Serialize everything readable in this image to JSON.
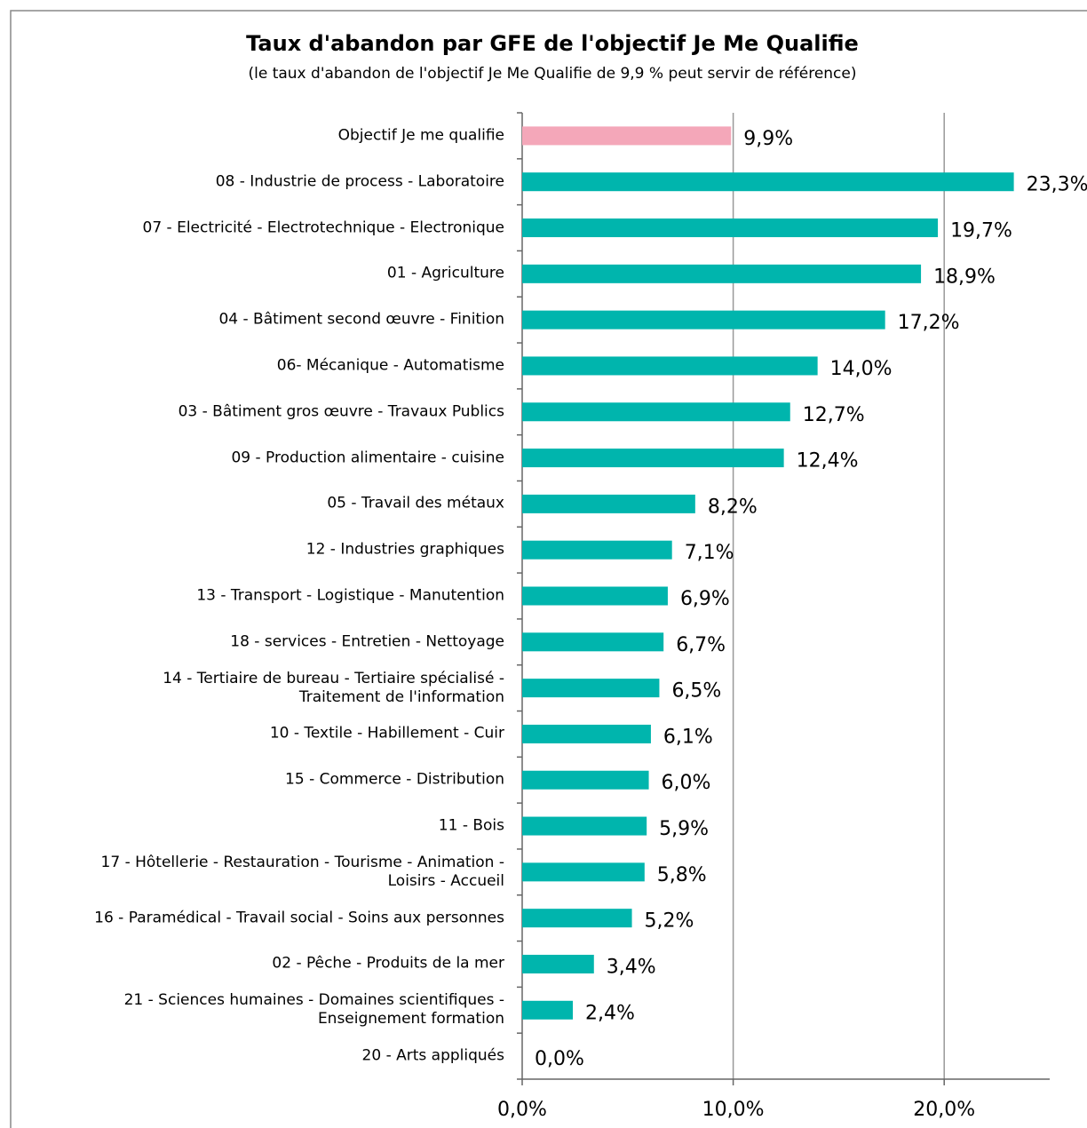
{
  "chart_data": {
    "type": "bar",
    "orientation": "horizontal",
    "title": "Taux d'abandon par GFE de l'objectif Je Me Qualifie",
    "subtitle": "(le taux d'abandon de l'objectif Je Me  Qualifie de 9,9 % peut servir de référence)",
    "categories": [
      "Objectif Je me qualifie",
      "08 - Industrie de process - Laboratoire",
      "07 - Electricité - Electrotechnique - Electronique",
      "01 - Agriculture",
      "04 - Bâtiment second œuvre - Finition",
      "06- Mécanique - Automatisme",
      "03 - Bâtiment gros œuvre - Travaux Publics",
      "09 - Production alimentaire - cuisine",
      "05 - Travail des métaux",
      "12 - Industries graphiques",
      "13 - Transport - Logistique - Manutention",
      "18 - services - Entretien - Nettoyage",
      "14 - Tertiaire de bureau - Tertiaire spécialisé -\nTraitement de l'information",
      "10 - Textile - Habillement - Cuir",
      "15 - Commerce - Distribution",
      "11 - Bois",
      "17 - Hôtellerie - Restauration - Tourisme - Animation -\nLoisirs - Accueil",
      "16 - Paramédical - Travail social - Soins aux personnes",
      "02 - Pêche - Produits de la mer",
      "21 - Sciences humaines - Domaines scientifiques -\nEnseignement formation",
      "20 - Arts appliqués"
    ],
    "values": [
      9.9,
      23.3,
      19.7,
      18.9,
      17.2,
      14.0,
      12.7,
      12.4,
      8.2,
      7.1,
      6.9,
      6.7,
      6.5,
      6.1,
      6.0,
      5.9,
      5.8,
      5.2,
      3.4,
      2.4,
      0.0
    ],
    "value_labels": [
      "9,9%",
      "23,3%",
      "19,7%",
      "18,9%",
      "17,2%",
      "14,0%",
      "12,7%",
      "12,4%",
      "8,2%",
      "7,1%",
      "6,9%",
      "6,7%",
      "6,5%",
      "6,1%",
      "6,0%",
      "5,9%",
      "5,8%",
      "5,2%",
      "3,4%",
      "2,4%",
      "0,0%"
    ],
    "colors": [
      "#f4a7b9",
      "#00b5ad",
      "#00b5ad",
      "#00b5ad",
      "#00b5ad",
      "#00b5ad",
      "#00b5ad",
      "#00b5ad",
      "#00b5ad",
      "#00b5ad",
      "#00b5ad",
      "#00b5ad",
      "#00b5ad",
      "#00b5ad",
      "#00b5ad",
      "#00b5ad",
      "#00b5ad",
      "#00b5ad",
      "#00b5ad",
      "#00b5ad",
      "#00b5ad"
    ],
    "xlim": [
      0,
      25
    ],
    "xticks": [
      {
        "value": 0,
        "label": "0,0%"
      },
      {
        "value": 10,
        "label": "10,0%"
      },
      {
        "value": 20,
        "label": "20,0%"
      }
    ],
    "grid": true
  }
}
